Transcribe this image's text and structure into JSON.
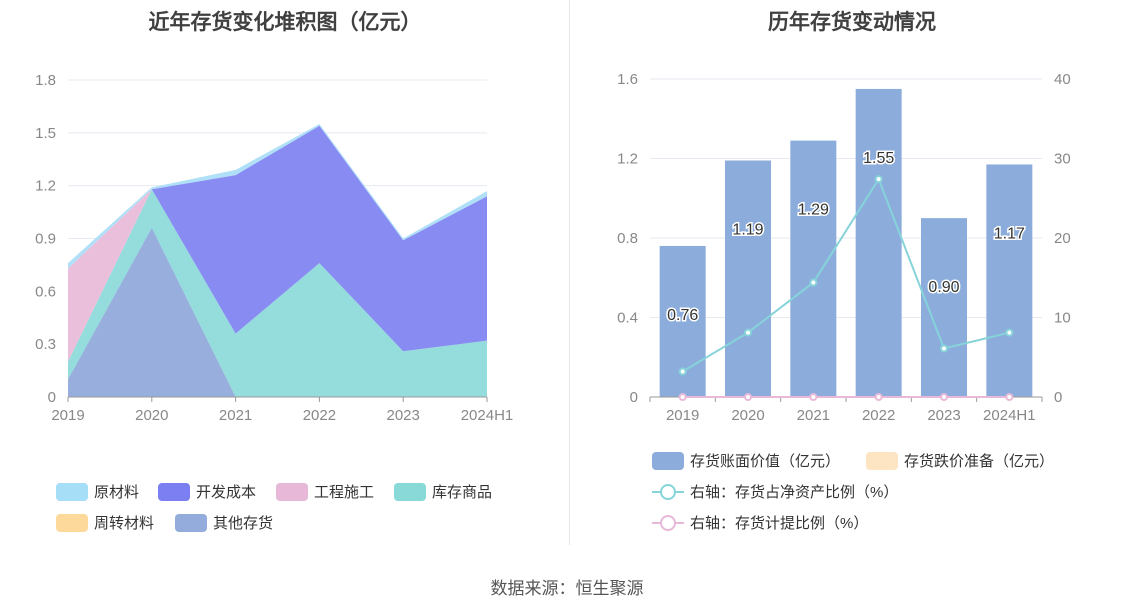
{
  "footer": {
    "source": "数据来源：恒生聚源"
  },
  "chart_data": [
    {
      "type": "area",
      "stacked": true,
      "title": "近年存货变化堆积图（亿元）",
      "x": [
        "2019",
        "2020",
        "2021",
        "2022",
        "2023",
        "2024H1"
      ],
      "ylim": [
        0,
        1.8
      ],
      "yticks": [
        "0",
        "0.3",
        "0.6",
        "0.9",
        "1.2",
        "1.5",
        "1.8"
      ],
      "grid": true,
      "legend_position": "bottom",
      "series": [
        {
          "name": "原材料",
          "color": "#a6ddf7",
          "values": [
            0.03,
            0.01,
            0.03,
            0.01,
            0.01,
            0.03
          ]
        },
        {
          "name": "开发成本",
          "color": "#7b7ff1",
          "values": [
            0,
            0,
            0.9,
            0.78,
            0.63,
            0.82
          ]
        },
        {
          "name": "工程施工",
          "color": "#e8b8d8",
          "values": [
            0.53,
            0,
            0,
            0,
            0,
            0
          ]
        },
        {
          "name": "库存商品",
          "color": "#8ad9d9",
          "values": [
            0.1,
            0.22,
            0.36,
            0.76,
            0.26,
            0.32
          ]
        },
        {
          "name": "周转材料",
          "color": "#fdd99b",
          "values": [
            0,
            0,
            0,
            0,
            0,
            0
          ]
        },
        {
          "name": "其他存货",
          "color": "#94acdb",
          "values": [
            0.1,
            0.96,
            0,
            0,
            0,
            0
          ]
        }
      ]
    },
    {
      "type": "bar",
      "title": "历年存货变动情况",
      "categories": [
        "2019",
        "2020",
        "2021",
        "2022",
        "2023",
        "2024H1"
      ],
      "ylim": [
        0,
        1.6
      ],
      "yticks": [
        "0",
        "0.4",
        "0.8",
        "1.2",
        "1.6"
      ],
      "y2lim": [
        0,
        40
      ],
      "y2ticks": [
        "0",
        "10",
        "20",
        "30",
        "40"
      ],
      "grid": true,
      "legend_position": "bottom",
      "series": [
        {
          "name": "存货账面价值（亿元）",
          "type": "bar",
          "axis": "left",
          "color": "#8caddb",
          "values": [
            0.76,
            1.19,
            1.29,
            1.55,
            0.9,
            1.17
          ],
          "labels": [
            "0.76",
            "1.19",
            "1.29",
            "1.55",
            "0.90",
            "1.17"
          ]
        },
        {
          "name": "存货跌价准备（亿元）",
          "type": "bar",
          "axis": "left",
          "color": "#fde5c3",
          "values": [
            0,
            0,
            0,
            0,
            0,
            0
          ]
        },
        {
          "name": "右轴：存货占净资产比例（%）",
          "type": "line",
          "axis": "right",
          "color": "#86d3da",
          "values": [
            3.2,
            8.1,
            14.4,
            27.4,
            6.1,
            8.1
          ]
        },
        {
          "name": "右轴：存货计提比例（%）",
          "type": "line",
          "axis": "right",
          "color": "#e8b8d8",
          "values": [
            0,
            0,
            0,
            0,
            0,
            0
          ]
        }
      ]
    }
  ]
}
